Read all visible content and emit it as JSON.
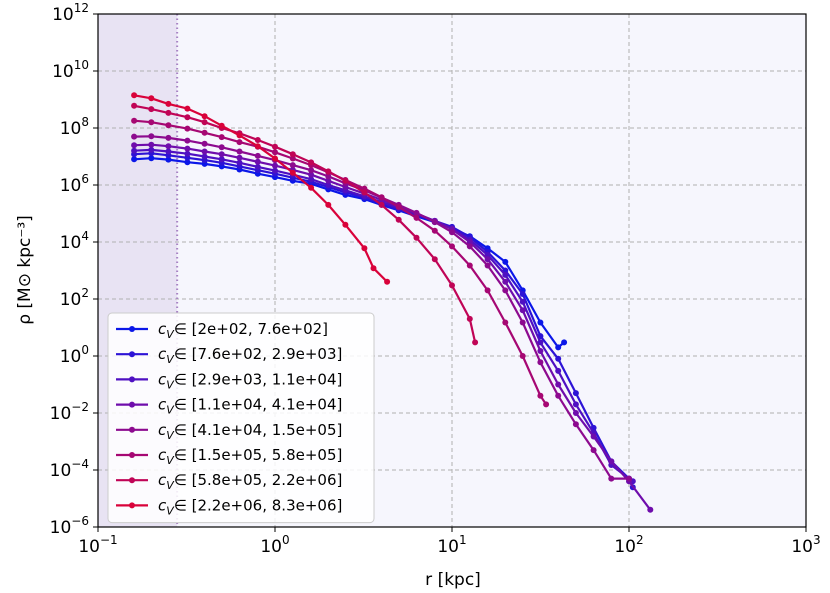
{
  "chart_data": {
    "type": "line",
    "xlabel": "r [kpc]",
    "ylabel": "ρ [M⊙ kpc⁻³]",
    "xscale": "log",
    "yscale": "log",
    "xlim": [
      0.1,
      1000
    ],
    "ylim": [
      1e-06,
      1000000000000.0
    ],
    "x_ticks": [
      {
        "value": 0.1,
        "base": "10",
        "exp": "−1"
      },
      {
        "value": 1,
        "base": "10",
        "exp": "0"
      },
      {
        "value": 10,
        "base": "10",
        "exp": "1"
      },
      {
        "value": 100,
        "base": "10",
        "exp": "2"
      },
      {
        "value": 1000,
        "base": "10",
        "exp": "3"
      }
    ],
    "y_ticks": [
      {
        "value": 1e-06,
        "base": "10",
        "exp": "−6"
      },
      {
        "value": 0.0001,
        "base": "10",
        "exp": "−4"
      },
      {
        "value": 0.01,
        "base": "10",
        "exp": "−2"
      },
      {
        "value": 1,
        "base": "10",
        "exp": "0"
      },
      {
        "value": 100,
        "base": "10",
        "exp": "2"
      },
      {
        "value": 10000.0,
        "base": "10",
        "exp": "4"
      },
      {
        "value": 1000000.0,
        "base": "10",
        "exp": "6"
      },
      {
        "value": 100000000.0,
        "base": "10",
        "exp": "8"
      },
      {
        "value": 10000000000.0,
        "base": "10",
        "exp": "10"
      },
      {
        "value": 1000000000000.0,
        "base": "10",
        "exp": "12"
      }
    ],
    "grid": true,
    "legend_position": "lower-left",
    "shaded_region": {
      "x_max": 0.28,
      "color": "#e8e3f3"
    },
    "vertical_line": {
      "x": 0.28,
      "color": "#a782c3",
      "style": "dotted"
    },
    "plot_background": "#f6f6fd",
    "series": [
      {
        "name": "[2e+02, 7.6e+02]",
        "color": "#0b17e8",
        "x": [
          0.16,
          0.2,
          0.25,
          0.32,
          0.4,
          0.5,
          0.63,
          0.8,
          1.0,
          1.26,
          1.6,
          2.0,
          2.5,
          3.2,
          4.0,
          5.0,
          6.3,
          8.0,
          10.0,
          12.6,
          15.9,
          20.0,
          25.1,
          31.6,
          39.8,
          43
        ],
        "y": [
          8000000.0,
          8700000.0,
          7800000.0,
          6300000.0,
          5500000.0,
          4500000.0,
          3500000.0,
          2500000.0,
          1900000.0,
          1400000.0,
          1100000.0,
          700000.0,
          450000.0,
          320000.0,
          200000.0,
          130000.0,
          80000.0,
          50000.0,
          30000.0,
          16000.0,
          6000.0,
          2000.0,
          200.0,
          15,
          2,
          3
        ]
      },
      {
        "name": "[7.6e+02, 2.9e+03]",
        "color": "#2d13d6",
        "x": [
          0.16,
          0.2,
          0.25,
          0.32,
          0.4,
          0.5,
          0.63,
          0.8,
          1.0,
          1.26,
          1.6,
          2.0,
          2.5,
          3.2,
          4.0,
          5.0,
          6.3,
          8.0,
          10.0,
          12.6,
          15.9,
          20.0,
          25.1,
          31.6,
          39.8,
          50.1,
          63.1,
          79.4,
          100,
          105
        ],
        "y": [
          12000000.0,
          13000000.0,
          11000000.0,
          9000000.0,
          7500000.0,
          6000000.0,
          4500000.0,
          3300000.0,
          2500000.0,
          1800000.0,
          1300000.0,
          850000.0,
          550000.0,
          360000.0,
          220000.0,
          140000.0,
          90000.0,
          55000.0,
          34000.0,
          15000.0,
          4500.0,
          1000.0,
          150.0,
          5,
          0.8,
          0.05,
          0.003,
          0.0002,
          5e-05,
          2.5e-05
        ]
      },
      {
        "name": "[2.9e+03, 1.1e+04]",
        "color": "#4f10c2",
        "x": [
          0.16,
          0.2,
          0.25,
          0.32,
          0.4,
          0.5,
          0.63,
          0.8,
          1.0,
          1.26,
          1.6,
          2.0,
          2.5,
          3.2,
          4.0,
          5.0,
          6.3,
          8.0,
          10.0,
          12.6,
          15.9,
          20.0,
          25.1,
          31.6,
          39.8,
          50.1,
          63.1,
          79.4,
          100,
          105
        ],
        "y": [
          16000000.0,
          17000000.0,
          15000000.0,
          12500000.0,
          10000000.0,
          8000000.0,
          6000000.0,
          4300000.0,
          3200000.0,
          2300000.0,
          1600000.0,
          1000000.0,
          650000.0,
          400000.0,
          250000.0,
          160000.0,
          95000.0,
          55000.0,
          30000.0,
          12000.0,
          3500.0,
          700.0,
          80,
          3,
          0.3,
          0.02,
          0.002,
          0.00015,
          5e-05,
          4e-05
        ]
      },
      {
        "name": "[1.1e+04, 4.1e+04]",
        "color": "#6f0dac",
        "x": [
          0.16,
          0.2,
          0.25,
          0.32,
          0.4,
          0.5,
          0.63,
          0.8,
          1.0,
          1.26,
          1.6,
          2.0,
          2.5,
          3.2,
          4.0,
          5.0,
          6.3,
          8.0,
          10.0,
          12.6,
          15.9,
          20.0,
          25.1,
          31.6,
          39.8,
          50.1,
          63.1,
          79.4,
          100,
          132
        ],
        "y": [
          25000000.0,
          26000000.0,
          23000000.0,
          19000000.0,
          15000000.0,
          12000000.0,
          9000000.0,
          6500000.0,
          4800000.0,
          3400000.0,
          2300000.0,
          1400000.0,
          850000.0,
          500000.0,
          300000.0,
          180000.0,
          100000.0,
          55000.0,
          28000.0,
          10000.0,
          2500.0,
          400.0,
          40,
          1.5,
          0.1,
          0.01,
          0.0015,
          0.0002,
          4e-05,
          4e-06
        ]
      },
      {
        "name": "[4.1e+04, 1.5e+05]",
        "color": "#8d0a8f",
        "x": [
          0.16,
          0.2,
          0.25,
          0.32,
          0.4,
          0.5,
          0.63,
          0.8,
          1.0,
          1.26,
          1.6,
          2.0,
          2.5,
          3.2,
          4.0,
          5.0,
          6.3,
          8.0,
          10.0,
          12.6,
          15.9,
          20.0,
          25.1,
          31.6,
          39.8,
          50.1,
          63.1,
          79.4,
          100
        ],
        "y": [
          50000000.0,
          51000000.0,
          45000000.0,
          36000000.0,
          28000000.0,
          21000000.0,
          15000000.0,
          10500000.0,
          7500000.0,
          5000000.0,
          3300000.0,
          2000000.0,
          1150000.0,
          650000.0,
          360000.0,
          200000.0,
          105000.0,
          50000.0,
          22000.0,
          7000.0,
          1500.0,
          200.0,
          15,
          0.6,
          0.04,
          0.004,
          0.0005,
          5e-05,
          5e-05
        ]
      },
      {
        "name": "[1.5e+05, 5.8e+05]",
        "color": "#a60773",
        "x": [
          0.16,
          0.2,
          0.25,
          0.32,
          0.4,
          0.5,
          0.63,
          0.8,
          1.0,
          1.26,
          1.6,
          2.0,
          2.5,
          3.2,
          4.0,
          5.0,
          6.3,
          8.0,
          10.0,
          12.6,
          15.9,
          20.0,
          25.1,
          31.6,
          34
        ],
        "y": [
          180000000.0,
          160000000.0,
          125000000.0,
          95000000.0,
          68000000.0,
          48000000.0,
          32000000.0,
          22000000.0,
          14000000.0,
          8500000.0,
          5000000.0,
          2800000.0,
          1500000.0,
          750000.0,
          370000.0,
          170000.0,
          70000.0,
          25000.0,
          7000.0,
          1500.0,
          200.0,
          15,
          1,
          0.04,
          0.02
        ]
      },
      {
        "name": "[5.8e+05, 2.2e+06]",
        "color": "#c00456",
        "x": [
          0.16,
          0.2,
          0.25,
          0.32,
          0.4,
          0.5,
          0.63,
          0.8,
          1.0,
          1.26,
          1.6,
          2.0,
          2.5,
          3.2,
          4.0,
          5.0,
          6.3,
          8.0,
          10.0,
          12.6,
          13.5
        ],
        "y": [
          600000000.0,
          460000000.0,
          340000000.0,
          240000000.0,
          160000000.0,
          100000000.0,
          65000000.0,
          38000000.0,
          22000000.0,
          12000000.0,
          6200000.0,
          3000000.0,
          1400000.0,
          550000.0,
          200000.0,
          60000.0,
          14000.0,
          2500.0,
          300.0,
          20,
          3
        ]
      },
      {
        "name": "[2.2e+06, 8.3e+06]",
        "color": "#d9023a",
        "x": [
          0.16,
          0.2,
          0.25,
          0.32,
          0.4,
          0.5,
          0.63,
          0.8,
          1.0,
          1.26,
          1.6,
          2.0,
          2.5,
          3.2,
          3.6,
          4.3
        ],
        "y": [
          1400000000.0,
          1100000000.0,
          700000000.0,
          480000000.0,
          260000000.0,
          120000000.0,
          55000000.0,
          23000000.0,
          8500000.0,
          2700000.0,
          800000.0,
          200000.0,
          40000.0,
          6000.0,
          1200.0,
          400.0
        ]
      }
    ]
  },
  "legend_prefix": "c",
  "legend_subscript": "V",
  "legend_symbol": "∈"
}
